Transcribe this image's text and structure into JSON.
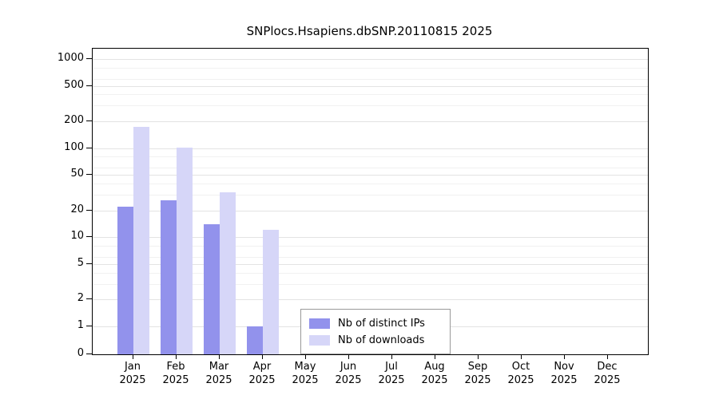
{
  "chart_data": {
    "type": "bar",
    "title": "SNPlocs.Hsapiens.dbSNP.20110815 2025",
    "categories": [
      "Jan",
      "Feb",
      "Mar",
      "Apr",
      "May",
      "Jun",
      "Jul",
      "Aug",
      "Sep",
      "Oct",
      "Nov",
      "Dec"
    ],
    "category_year": "2025",
    "series": [
      {
        "name": "Nb of distinct IPs",
        "color": "#9292ec",
        "values": [
          22,
          26,
          14,
          1,
          0,
          0,
          0,
          0,
          0,
          0,
          0,
          0
        ]
      },
      {
        "name": "Nb of downloads",
        "color": "#d6d6f8",
        "values": [
          175,
          101,
          32,
          12,
          0,
          0,
          0,
          0,
          0,
          0,
          0,
          0
        ]
      }
    ],
    "yticks": [
      0,
      1,
      2,
      5,
      10,
      20,
      50,
      100,
      200,
      500,
      1000
    ],
    "minor_gridlines": [
      3,
      4,
      6,
      8,
      30,
      40,
      60,
      80,
      300,
      400,
      600,
      800
    ],
    "scale": "log",
    "ylim": [
      0,
      1000
    ],
    "xlabel": "",
    "ylabel": "",
    "grid": true,
    "legend_position": "bottom-center-inside",
    "background": "#ffffff"
  }
}
